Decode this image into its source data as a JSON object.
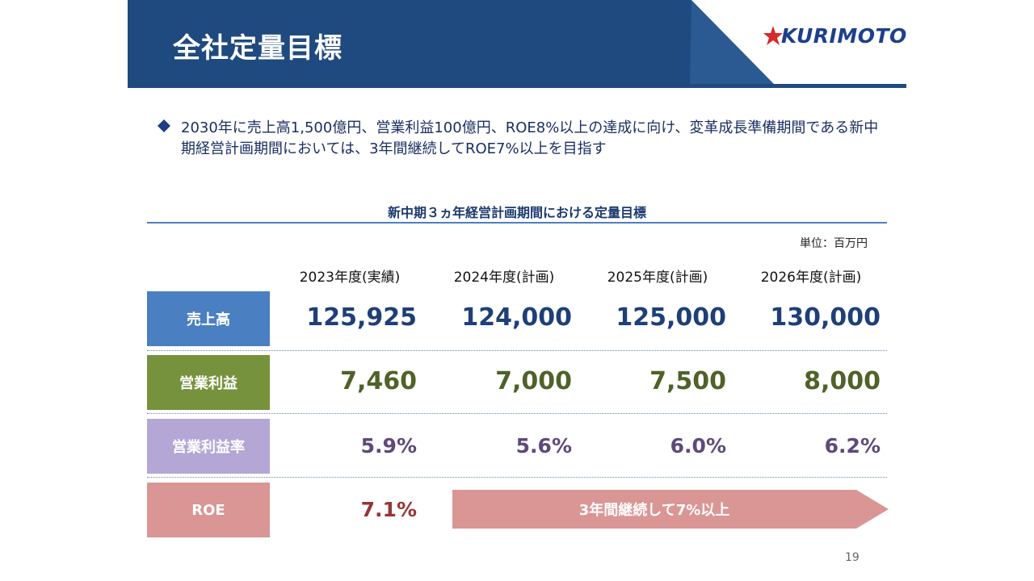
{
  "header": {
    "title": "全社定量目標",
    "logo_text": "KURIMOTO",
    "colors": {
      "band": "#1f4a7f",
      "band_light": "#2b5a92"
    }
  },
  "bullet": {
    "icon": "diamond-icon",
    "text": "2030年に売上高1,500億円、営業利益100億円、ROE8%以上の達成に向け、変革成長準備期間である新中期経営計画期間においては、3年間継続してROE7%以上を目指す"
  },
  "table": {
    "title": "新中期３ヵ年経営計画期間における定量目標",
    "unit": "単位：百万円",
    "columns": [
      "2023年度(実績)",
      "2024年度(計画)",
      "2025年度(計画)",
      "2026年度(計画)"
    ],
    "rows": [
      {
        "label": "売上高",
        "label_color": "#4a7fc1",
        "value_color": "#1e3f78",
        "values": [
          "125,925",
          "124,000",
          "125,000",
          "130,000"
        ]
      },
      {
        "label": "営業利益",
        "label_color": "#76923c",
        "value_color": "#4f6228",
        "values": [
          "7,460",
          "7,000",
          "7,500",
          "8,000"
        ]
      },
      {
        "label": "営業利益率",
        "label_color": "#b4a7d6",
        "value_color": "#5f497a",
        "values": [
          "5.9%",
          "5.6%",
          "6.0%",
          "6.2%"
        ]
      },
      {
        "label": "ROE",
        "label_color": "#da9694",
        "value_color": "#953735",
        "values": [
          "7.1%"
        ]
      }
    ],
    "roe_target_arrow": "3年間継続して7%以上"
  },
  "page_number": "19"
}
